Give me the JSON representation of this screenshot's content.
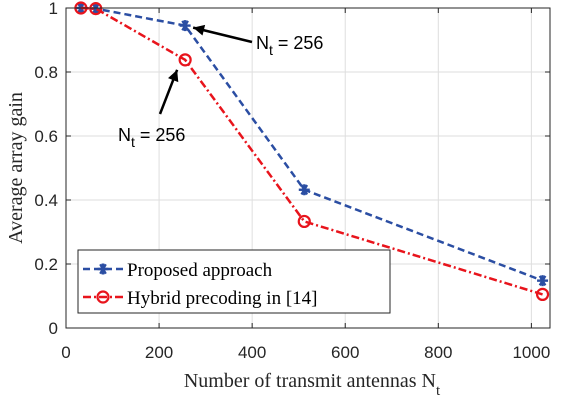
{
  "chart_data": {
    "type": "line",
    "title": "",
    "xlabel": "Number of transmit antennas N",
    "xlabel_sub": "t",
    "ylabel": "Average array gain",
    "xlim": [
      0,
      1040
    ],
    "ylim": [
      0,
      1
    ],
    "xticks": [
      0,
      200,
      400,
      600,
      800,
      1000
    ],
    "yticks": [
      0,
      0.2,
      0.4,
      0.6,
      0.8,
      1
    ],
    "xtick_labels": [
      "0",
      "200",
      "400",
      "600",
      "800",
      "1000"
    ],
    "ytick_labels": [
      "0",
      "0.2",
      "0.4",
      "0.6",
      "0.8",
      "1"
    ],
    "grid": true,
    "legend_position": "bottom-left",
    "series": [
      {
        "name": "Proposed approach",
        "color": "#2b4ea3",
        "line_style": "dashed",
        "marker": "asterisk",
        "x": [
          32,
          64,
          256,
          512,
          1024
        ],
        "values": [
          1.0,
          0.998,
          0.945,
          0.432,
          0.148
        ]
      },
      {
        "name": "Hybrid precoding in [14]",
        "color": "#e8141c",
        "line_style": "dash-dot",
        "marker": "circle",
        "x": [
          32,
          64,
          256,
          512,
          1024
        ],
        "values": [
          1.0,
          0.998,
          0.838,
          0.333,
          0.105
        ]
      }
    ],
    "annotations": [
      {
        "text": "N",
        "sub": "t",
        "suffix": " = 256",
        "series": 0,
        "x": 256,
        "y": 0.945
      },
      {
        "text": "N",
        "sub": "t",
        "suffix": " = 256",
        "series": 1,
        "x": 256,
        "y": 0.838
      }
    ]
  }
}
